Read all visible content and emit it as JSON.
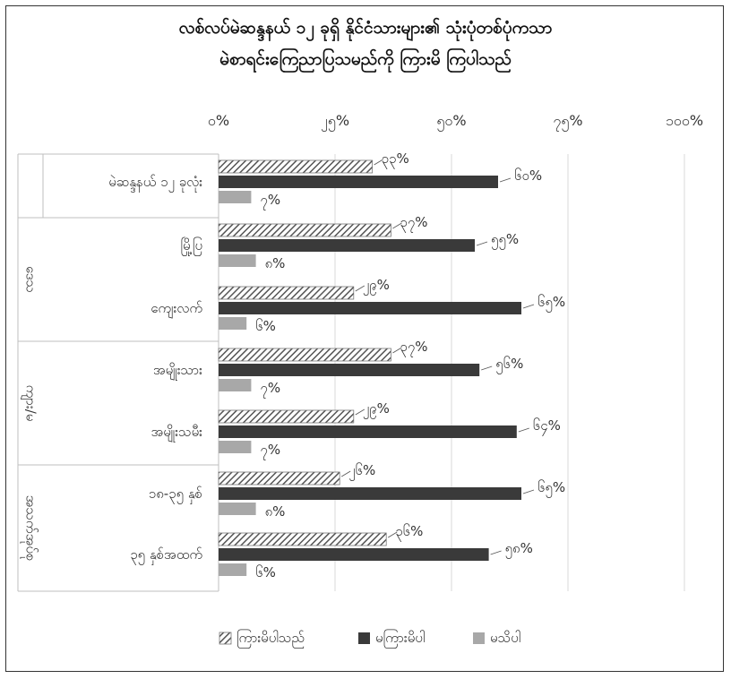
{
  "chart_data": {
    "type": "bar",
    "orientation": "horizontal",
    "title": "လစ်လပ်မဲဆန္ဒနယ် ၁၂ ခုရှိ နိုင်ငံသားများ၏ သုံးပုံတစ်ပုံကသာ မဲစာရင်းကြေညာပြသမည်ကို ကြားမိ ကြပါသည်",
    "title_lines": [
      "လစ်လပ်မဲဆန္ဒနယ် ၁၂ ခုရှိ နိုင်ငံသားများ၏ သုံးပုံတစ်ပုံကသာ",
      "မဲစာရင်းကြေညာပြသမည်ကို ကြားမိ ကြပါသည်"
    ],
    "xlim": [
      0,
      100
    ],
    "x_ticks": [
      0,
      25,
      50,
      75,
      100
    ],
    "x_tick_labels": [
      "၀%",
      "၂၅%",
      "၅၀%",
      "၇၅%",
      "၁၀၀%"
    ],
    "grid": true,
    "legend_position": "bottom",
    "categories": [
      "မဲဆန္ဒနယ် ၁၂ ခုလုံး",
      "မြို့ပြ",
      "ကျေးလက်",
      "အမျိုးသား",
      "အမျိုးသမီး",
      "၁၈-၃၅ နှစ်",
      "၃၅ နှစ်အထက်"
    ],
    "groups": [
      {
        "label": "",
        "members": [
          "မဲဆန္ဒနယ် ၁၂ ခုလုံး"
        ]
      },
      {
        "label": "ဒေသ",
        "members": [
          "မြို့ပြ",
          "ကျေးလက်"
        ]
      },
      {
        "label": "ကျား/မ",
        "members": [
          "အမျိုးသား",
          "အမျိုးသမီး"
        ]
      },
      {
        "label": "အသက်အုပ်စု",
        "members": [
          "၁၈-၃၅ နှစ်",
          "၃၅ နှစ်အထက်"
        ]
      }
    ],
    "series": [
      {
        "name": "ကြားမိပါသည်",
        "color": "#555555",
        "pattern": "diagonal-hatch",
        "values": [
          33,
          37,
          29,
          37,
          29,
          26,
          36
        ],
        "labels": [
          "၃၃%",
          "၃၇%",
          "၂၉%",
          "၃၇%",
          "၂၉%",
          "၂၆%",
          "၃၆%"
        ]
      },
      {
        "name": "မကြားမိပါ",
        "color": "#3a3a3a",
        "pattern": "solid",
        "values": [
          60,
          55,
          65,
          56,
          64,
          65,
          58
        ],
        "labels": [
          "၆၀%",
          "၅၅%",
          "၆၅%",
          "၅၆%",
          "၆၄%",
          "၆၅%",
          "၅၈%"
        ]
      },
      {
        "name": "မသိပါ",
        "color": "#a8a8a8",
        "pattern": "solid",
        "values": [
          7,
          8,
          6,
          7,
          7,
          8,
          6
        ],
        "labels": [
          "၇%",
          "၈%",
          "၆%",
          "၇%",
          "၇%",
          "၈%",
          "၆%"
        ]
      }
    ]
  }
}
